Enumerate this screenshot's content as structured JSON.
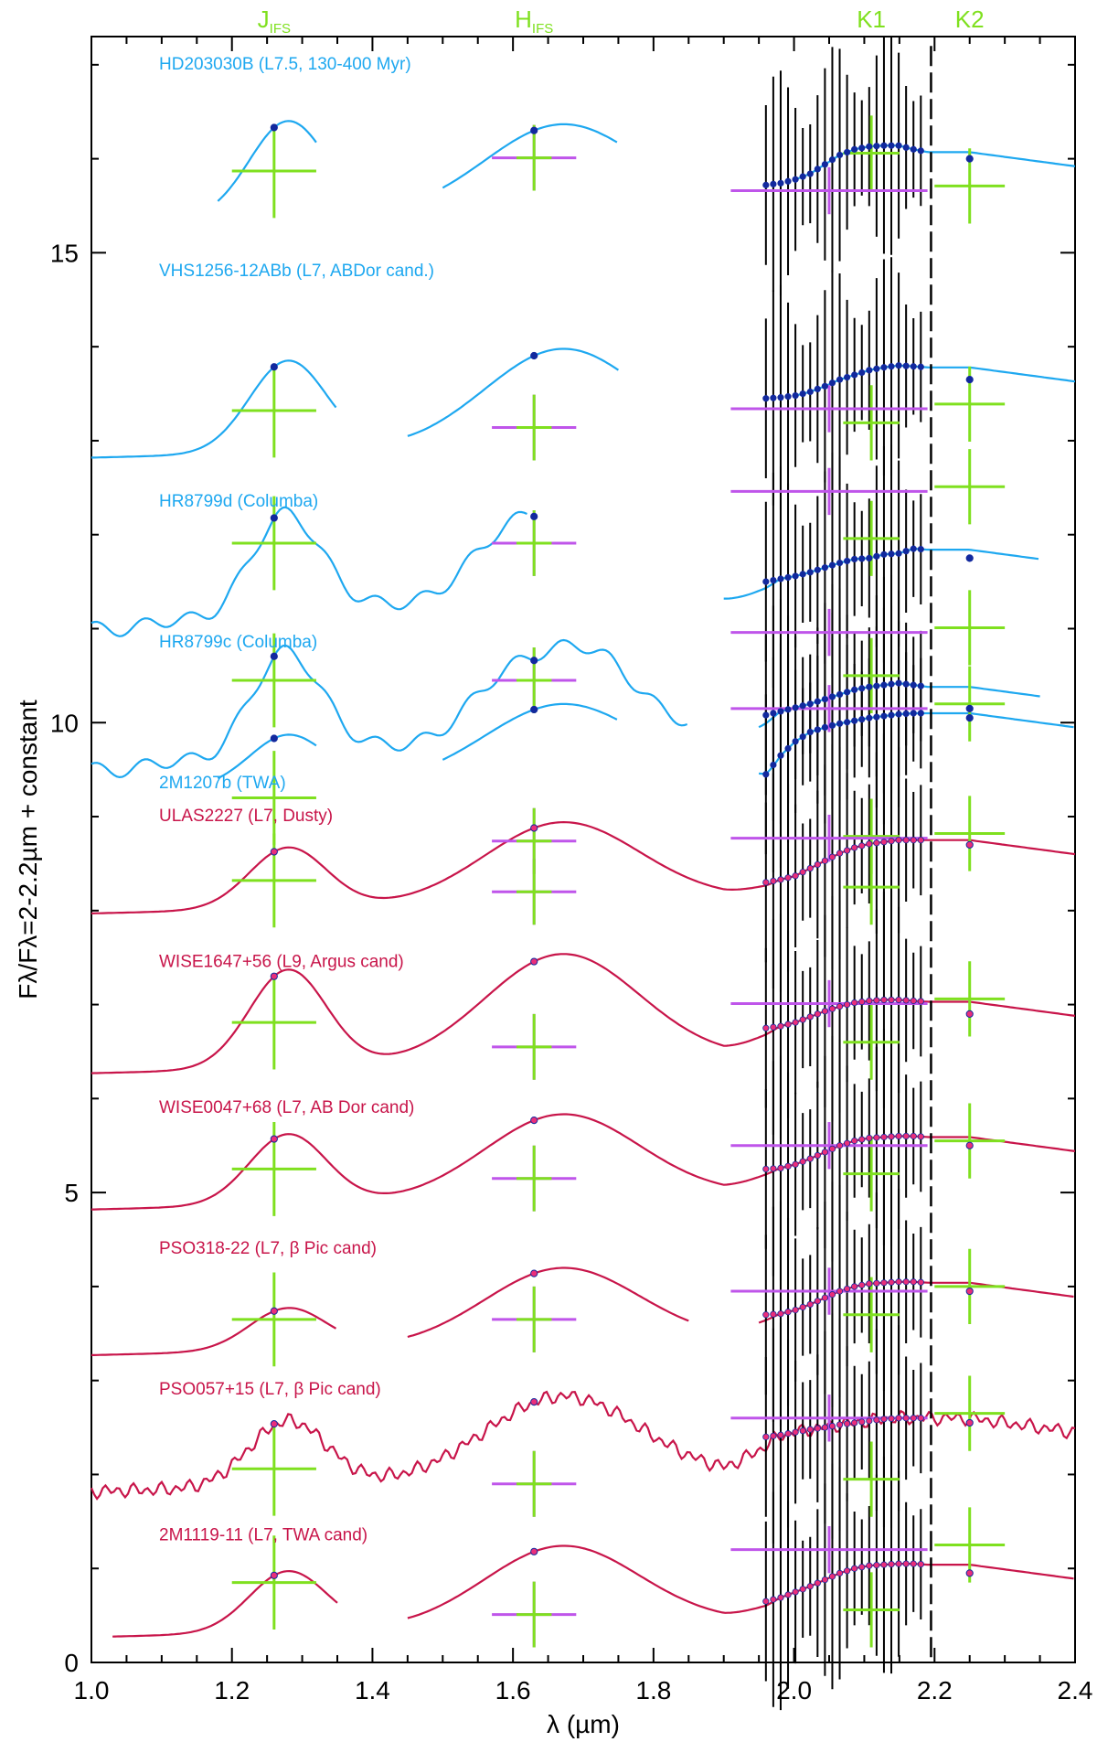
{
  "chart_data": {
    "type": "line",
    "xlabel": "λ (µm)",
    "ylabel": "Fλ/Fλ=2-2.2µm + constant",
    "xlim": [
      1.0,
      2.4
    ],
    "ylim": [
      0,
      17.3
    ],
    "x_ticks": [
      "1.0",
      "1.2",
      "1.4",
      "1.6",
      "1.8",
      "2.0",
      "2.2",
      "2.4"
    ],
    "y_ticks": [
      "0",
      "5",
      "10",
      "15"
    ],
    "bands": [
      {
        "name": "J",
        "sub": "IFS",
        "x": 1.26
      },
      {
        "name": "H",
        "sub": "IFS",
        "x": 1.63
      },
      {
        "name": "K1",
        "sub": "",
        "x": 2.11
      },
      {
        "name": "K2",
        "sub": "",
        "x": 2.25
      }
    ],
    "divider_x": 2.195,
    "colors": {
      "young": "#1ea8f0",
      "field": "#c8154a",
      "field_points": "#ea2e7a",
      "young_points": "#12299e",
      "green": "#7fe01f",
      "purple": "#bf55ea",
      "errorbar": "#000000"
    },
    "series": [
      {
        "name": "HD203030B (L7.5, 130-400 Myr)",
        "group": "young",
        "offset": 15.1,
        "label_y": 16.95,
        "jpeak": 1.03,
        "hpeak": 1.09,
        "ktop": 1.1,
        "k2": 0.95,
        "segments": [
          [
            1.18,
            1.32
          ],
          [
            1.5,
            1.75
          ],
          [
            2.0,
            2.4
          ]
        ],
        "phot_dy": [
          0.77,
          0.91,
          -0.22,
          -0.03,
          0.66
        ],
        "kvals": [
          0.62,
          0.64,
          0.68,
          0.74,
          0.84,
          0.94,
          1.0,
          1.03,
          1.04,
          1.04,
          1.0,
          0.97
        ]
      },
      {
        "name": "VHS1256-12ABb (L7, ABDor cand.)",
        "group": "young",
        "offset": 12.6,
        "label_y": 14.75,
        "jpeak": 0.98,
        "hpeak": 1.22,
        "ktop": 1.2,
        "k2": 1.1,
        "segments": [
          [
            1.0,
            1.35
          ],
          [
            1.45,
            1.75
          ],
          [
            2.0,
            2.4
          ]
        ],
        "phot_dy": [
          0.72,
          0.54,
          0.5,
          0.19,
          0.84
        ],
        "kvals": [
          0.85,
          0.86,
          0.88,
          0.92,
          0.98,
          1.05,
          1.1,
          1.15,
          1.18,
          1.2,
          1.19,
          1.18
        ]
      },
      {
        "name": "HR8799d (Columba)",
        "group": "young",
        "offset": 10.8,
        "label_y": 12.3,
        "jpeak": 1.12,
        "hpeak": 1.44,
        "ktop": 1.0,
        "k2": 1.0,
        "segments": [
          [
            1.0,
            1.62
          ],
          [
            1.9,
            2.35
          ]
        ],
        "phot_dy": [
          1.11,
          1.11,
          1.69,
          1.03,
          1.76
        ],
        "kvals": [
          0.7,
          0.73,
          0.76,
          0.8,
          0.85,
          0.9,
          0.94,
          0.95,
          0.99,
          1.0,
          1.05,
          1.04
        ]
      },
      {
        "name": "HR8799c (Columba)",
        "group": "young",
        "offset": 9.3,
        "label_y": 10.8,
        "jpeak": 1.15,
        "hpeak": 1.4,
        "ktop": 1.1,
        "k2": 0.9,
        "segments": [
          [
            1.0,
            1.85
          ],
          [
            1.95,
            2.35
          ]
        ],
        "phot_dy": [
          1.15,
          1.15,
          1.76,
          1.26,
          1.76
        ],
        "kvals": [
          0.78,
          0.82,
          0.86,
          0.9,
          0.95,
          1.0,
          1.05,
          1.08,
          1.1,
          1.12,
          1.1,
          1.08
        ]
      },
      {
        "name": "2M1207b (TWA)",
        "group": "young",
        "offset": 9.05,
        "label_y": 9.3,
        "jpeak": 0.55,
        "hpeak": 0.95,
        "ktop": 1.05,
        "k2": 1.05,
        "segments": [
          [
            1.18,
            1.32
          ],
          [
            1.5,
            1.75
          ],
          [
            1.95,
            2.4
          ]
        ],
        "phot_dy": [
          0.15,
          -0.31,
          0.57,
          0.25,
          1.2
        ],
        "kvals": [
          0.4,
          0.6,
          0.75,
          0.85,
          0.9,
          0.94,
          0.97,
          1.0,
          1.02,
          1.04,
          1.05,
          1.05
        ]
      },
      {
        "name": "ULAS2227 (L7, Dusty)",
        "group": "field",
        "offset": 7.75,
        "label_y": 8.95,
        "jpeak": 0.65,
        "hpeak": 1.0,
        "ktop": 1.0,
        "k2": 1.0,
        "segments": [
          [
            1.0,
            2.4
          ]
        ],
        "phot_dy": [
          0.57,
          0.45,
          1.0,
          1.26,
          1.12
        ],
        "kvals": [
          0.55,
          0.58,
          0.62,
          0.7,
          0.78,
          0.86,
          0.92,
          0.96,
          0.98,
          1.0,
          1.0,
          1.0
        ]
      },
      {
        "name": "WISE1647+56 (L9, Argus cand)",
        "group": "field",
        "offset": 6.05,
        "label_y": 7.4,
        "jpeak": 1.05,
        "hpeak": 1.35,
        "ktop": 1.0,
        "k2": 0.9,
        "segments": [
          [
            1.0,
            2.4
          ]
        ],
        "phot_dy": [
          0.76,
          0.5,
          1.1,
          1.26,
          1.06
        ],
        "kvals": [
          0.7,
          0.72,
          0.76,
          0.82,
          0.88,
          0.93,
          0.97,
          0.99,
          1.0,
          1.0,
          0.99,
          0.98
        ]
      },
      {
        "name": "WISE0047+68 (L7, AB Dor cand)",
        "group": "field",
        "offset": 4.6,
        "label_y": 5.85,
        "jpeak": 0.75,
        "hpeak": 1.05,
        "ktop": 1.0,
        "k2": 0.95,
        "segments": [
          [
            1.0,
            2.4
          ]
        ],
        "phot_dy": [
          0.65,
          0.55,
          1.1,
          0.75,
          1.0
        ],
        "kvals": [
          0.65,
          0.66,
          0.7,
          0.76,
          0.83,
          0.9,
          0.95,
          0.98,
          0.99,
          1.0,
          1.0,
          0.99
        ]
      },
      {
        "name": "PSO318-22 (L7, β Pic cand)",
        "group": "field",
        "offset": 3.05,
        "label_y": 4.35,
        "jpeak": 0.45,
        "hpeak": 0.95,
        "ktop": 1.0,
        "k2": 0.95,
        "segments": [
          [
            1.0,
            1.35
          ],
          [
            1.45,
            1.85
          ],
          [
            1.95,
            2.4
          ]
        ],
        "phot_dy": [
          0.6,
          0.6,
          1.2,
          0.7,
          1.0
        ],
        "kvals": [
          0.65,
          0.66,
          0.7,
          0.76,
          0.83,
          0.9,
          0.95,
          0.98,
          0.99,
          1.0,
          1.0,
          0.99
        ]
      },
      {
        "name": "PSO057+15 (L7, β Pic cand)",
        "group": "field",
        "offset": 1.6,
        "label_y": 2.85,
        "jpeak": 0.7,
        "hpeak": 1.05,
        "ktop": 1.0,
        "k2": 1.0,
        "segments": [
          [
            1.0,
            2.4
          ]
        ],
        "phot_dy": [
          0.46,
          0.3,
          1.2,
          0.8,
          1.1
        ],
        "kvals": [
          0.8,
          0.82,
          0.85,
          0.88,
          0.9,
          0.93,
          0.95,
          0.97,
          0.99,
          1.0,
          1.0,
          1.0
        ]
      },
      {
        "name": "2M1119-11 (L7, TWA cand)",
        "group": "field",
        "offset": 0.05,
        "label_y": 1.3,
        "jpeak": 0.65,
        "hpeak": 1.0,
        "ktop": 1.0,
        "k2": 0.95,
        "segments": [
          [
            1.03,
            1.35
          ],
          [
            1.45,
            2.4
          ]
        ],
        "phot_dy": [
          0.8,
          0.46,
          1.0,
          1.05,
          1.25
        ],
        "kvals": [
          0.6,
          0.64,
          0.7,
          0.76,
          0.83,
          0.9,
          0.95,
          0.98,
          0.99,
          1.0,
          1.0,
          0.99
        ]
      }
    ]
  }
}
